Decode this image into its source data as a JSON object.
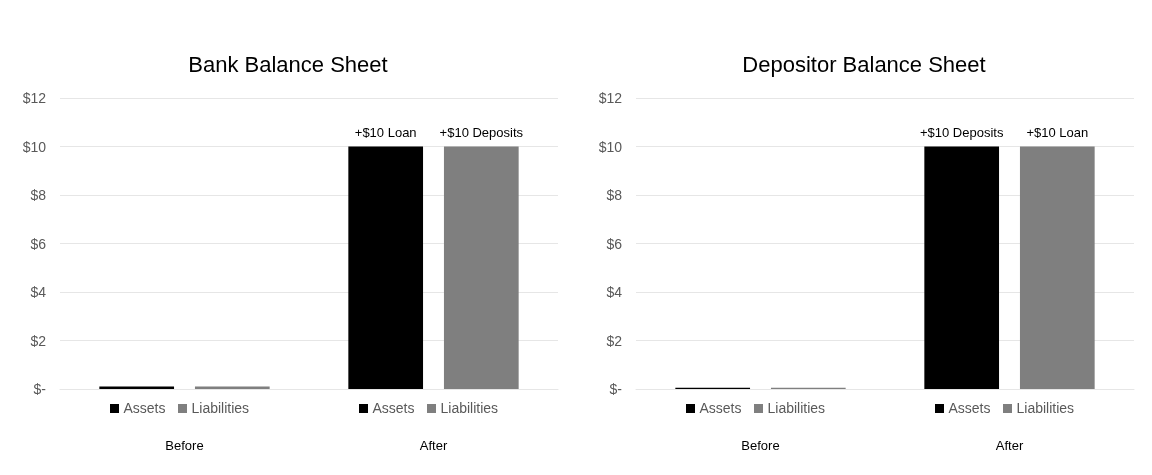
{
  "chart_data": [
    {
      "type": "bar",
      "title": "Bank Balance Sheet",
      "categories": [
        "Before",
        "After"
      ],
      "series": [
        {
          "name": "Assets",
          "color": "#000000",
          "values": [
            0.1,
            10
          ],
          "value_labels": [
            null,
            "+$10 Loan"
          ]
        },
        {
          "name": "Liabilities",
          "color": "#7f7f7f",
          "values": [
            0.1,
            10
          ],
          "value_labels": [
            null,
            "+$10 Deposits"
          ]
        }
      ],
      "ylim": [
        0,
        12
      ],
      "yticks": [
        {
          "value": 0,
          "label": "$-"
        },
        {
          "value": 2,
          "label": "$2"
        },
        {
          "value": 4,
          "label": "$4"
        },
        {
          "value": 6,
          "label": "$6"
        },
        {
          "value": 8,
          "label": "$8"
        },
        {
          "value": 10,
          "label": "$10"
        },
        {
          "value": 12,
          "label": "$12"
        }
      ],
      "grid": "y",
      "legend": "bottom"
    },
    {
      "type": "bar",
      "title": "Depositor Balance Sheet",
      "categories": [
        "Before",
        "After"
      ],
      "series": [
        {
          "name": "Assets",
          "color": "#000000",
          "values": [
            0.05,
            10
          ],
          "value_labels": [
            null,
            "+$10 Deposits"
          ]
        },
        {
          "name": "Liabilities",
          "color": "#7f7f7f",
          "values": [
            0.05,
            10
          ],
          "value_labels": [
            null,
            "+$10 Loan"
          ]
        }
      ],
      "ylim": [
        0,
        12
      ],
      "yticks": [
        {
          "value": 0,
          "label": "$-"
        },
        {
          "value": 2,
          "label": "$2"
        },
        {
          "value": 4,
          "label": "$4"
        },
        {
          "value": 6,
          "label": "$6"
        },
        {
          "value": 8,
          "label": "$8"
        },
        {
          "value": 10,
          "label": "$10"
        },
        {
          "value": 12,
          "label": "$12"
        }
      ],
      "grid": "y",
      "legend": "bottom"
    }
  ]
}
